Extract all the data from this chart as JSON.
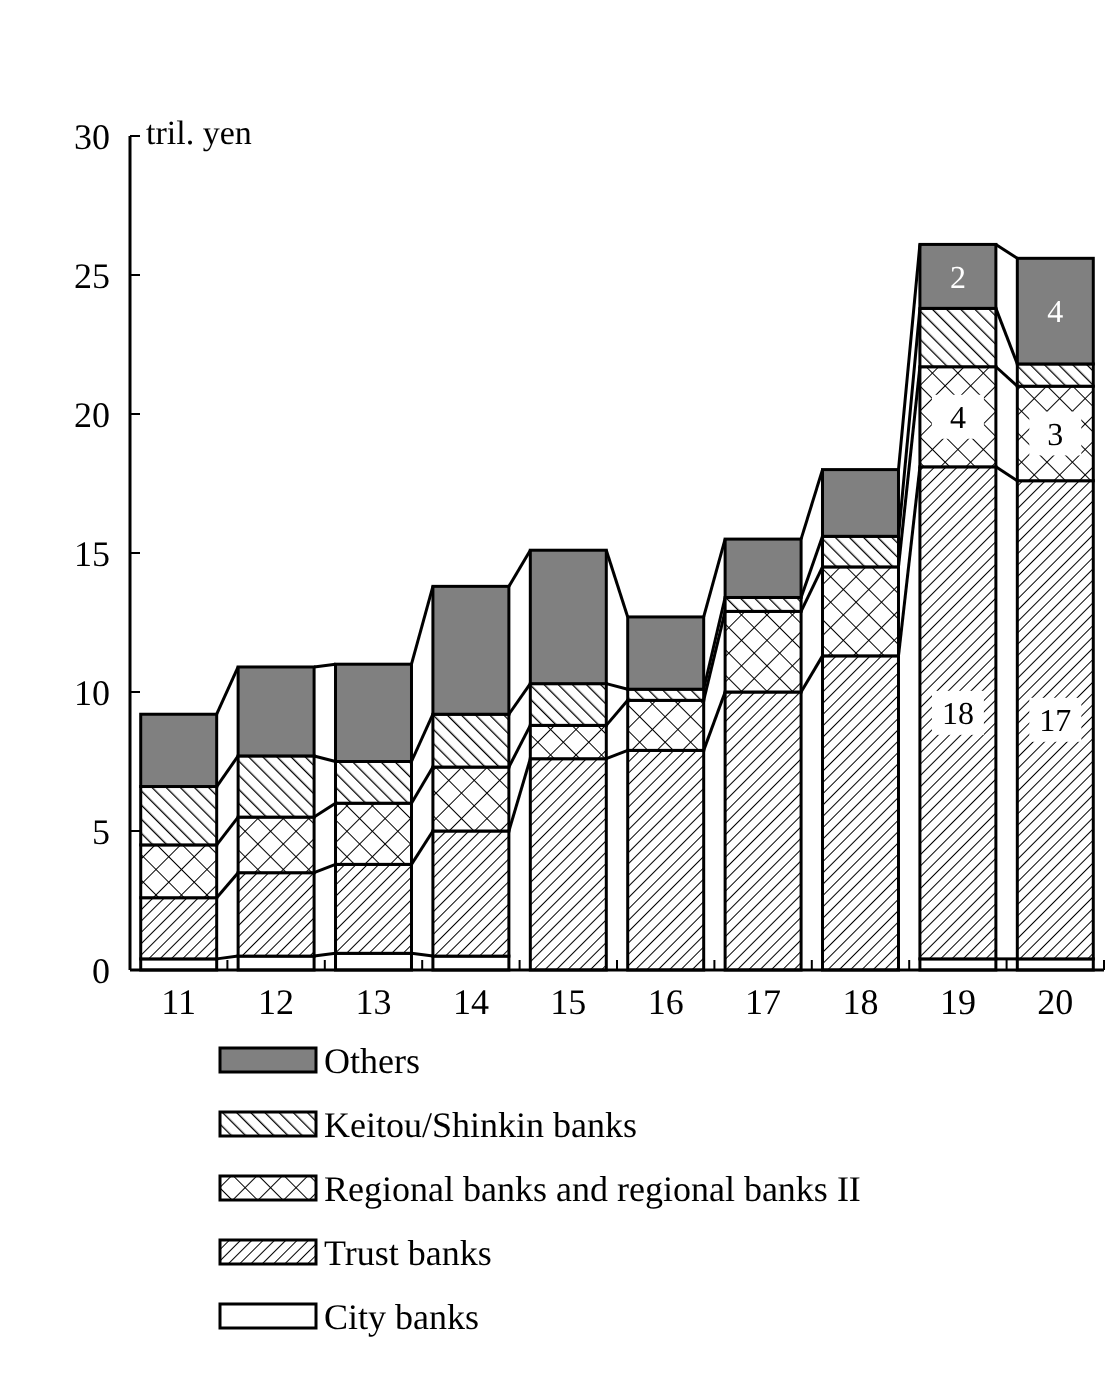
{
  "chart_data": {
    "type": "bar",
    "stacked": true,
    "ylabel": "tril. yen",
    "categories": [
      "11",
      "12",
      "13",
      "14",
      "15",
      "16",
      "17",
      "18",
      "19",
      "20"
    ],
    "series": [
      {
        "name": "City banks",
        "color": "#ffffff",
        "values": [
          0.4,
          0.5,
          0.6,
          0.5,
          null,
          null,
          null,
          null,
          0.4,
          0.4
        ]
      },
      {
        "name": "Trust banks",
        "color": "#000000",
        "values": [
          2.2,
          3.0,
          3.2,
          4.5,
          7.6,
          7.9,
          10.0,
          11.3,
          17.7,
          17.2
        ],
        "value_labels": [
          null,
          null,
          null,
          null,
          null,
          null,
          null,
          null,
          "18",
          "17"
        ]
      },
      {
        "name": "Regional banks and regional banks II",
        "color": "#000000",
        "values": [
          1.9,
          2.0,
          2.2,
          2.3,
          1.2,
          1.8,
          2.9,
          3.2,
          3.6,
          3.4
        ],
        "value_labels": [
          null,
          null,
          null,
          null,
          null,
          null,
          null,
          null,
          "4",
          "3"
        ]
      },
      {
        "name": "Keitou/Shinkin banks",
        "color": "#000000",
        "values": [
          2.1,
          2.2,
          1.5,
          1.9,
          1.5,
          0.4,
          0.5,
          1.1,
          2.1,
          0.8
        ]
      },
      {
        "name": "Others",
        "color": "#808080",
        "values": [
          2.6,
          3.2,
          3.5,
          4.6,
          4.8,
          2.6,
          2.1,
          2.4,
          2.3,
          3.8
        ],
        "value_labels": [
          null,
          null,
          null,
          null,
          null,
          null,
          null,
          null,
          "2",
          "4"
        ]
      }
    ],
    "ylim": [
      0,
      30
    ],
    "yticks": [
      0,
      5,
      10,
      15,
      20,
      25,
      30
    ],
    "grid": false,
    "legend": "bottom"
  }
}
